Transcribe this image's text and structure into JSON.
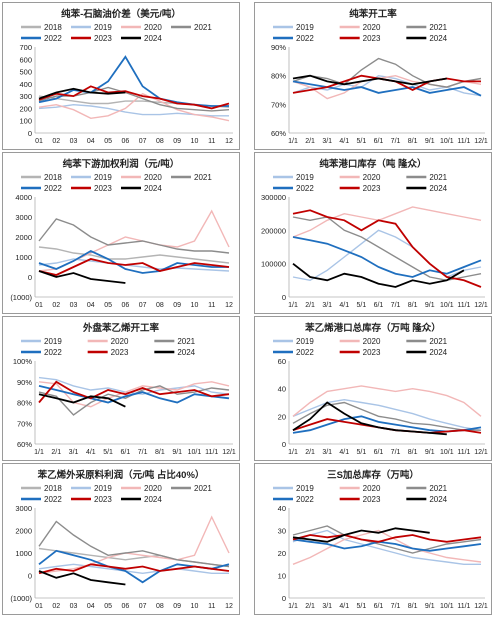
{
  "colors": {
    "2018": "#b4b4b4",
    "2019": "#a9c4e6",
    "2020": "#f2b7b7",
    "2021": "#8c8c8c",
    "2022": "#1f6fbf",
    "2023": "#c00000",
    "2024": "#000000"
  },
  "legend_years_7": [
    "2018",
    "2019",
    "2020",
    "2021",
    "2022",
    "2023",
    "2024"
  ],
  "legend_years_6": [
    "2019",
    "2020",
    "2021",
    "2022",
    "2023",
    "2024"
  ],
  "chart_data": [
    {
      "id": "p1",
      "type": "line",
      "title": "纯苯-石脑油价差（美元/吨）",
      "y_ticks": [
        "700",
        "600",
        "500",
        "400",
        "300",
        "200",
        "100",
        "0"
      ],
      "x_ticks": [
        "01",
        "02",
        "03",
        "04",
        "05",
        "06",
        "07",
        "08",
        "09",
        "10",
        "11",
        "12"
      ],
      "ylim": [
        0,
        700
      ],
      "series": [
        {
          "name": "2018",
          "values": [
            300,
            280,
            260,
            240,
            240,
            260,
            260,
            250,
            240,
            230,
            220,
            210
          ]
        },
        {
          "name": "2019",
          "values": [
            200,
            210,
            230,
            220,
            200,
            170,
            150,
            150,
            160,
            150,
            140,
            140
          ]
        },
        {
          "name": "2020",
          "values": [
            210,
            230,
            190,
            120,
            140,
            200,
            320,
            260,
            190,
            150,
            130,
            100
          ]
        },
        {
          "name": "2021",
          "values": [
            260,
            300,
            300,
            330,
            370,
            330,
            280,
            230,
            200,
            190,
            180,
            190
          ]
        },
        {
          "name": "2022",
          "values": [
            250,
            280,
            350,
            330,
            420,
            620,
            380,
            280,
            250,
            230,
            220,
            220
          ]
        },
        {
          "name": "2023",
          "values": [
            270,
            320,
            300,
            380,
            330,
            340,
            300,
            280,
            240,
            230,
            200,
            240
          ]
        },
        {
          "name": "2024",
          "values": [
            280,
            330,
            360,
            330,
            320,
            330,
            null,
            null,
            null,
            null,
            null,
            null
          ]
        }
      ]
    },
    {
      "id": "p2",
      "type": "line",
      "title": "纯苯下游加权利润（元/吨）",
      "y_ticks": [
        "4000",
        "3000",
        "2000",
        "1000",
        "0",
        "(1000)"
      ],
      "x_ticks": [
        "01",
        "02",
        "03",
        "04",
        "05",
        "06",
        "07",
        "08",
        "09",
        "10",
        "11",
        "12"
      ],
      "ylim": [
        -1000,
        4000
      ],
      "series": [
        {
          "name": "2018",
          "values": [
            1500,
            1400,
            1200,
            1100,
            900,
            900,
            1000,
            1100,
            1000,
            900,
            800,
            700
          ]
        },
        {
          "name": "2019",
          "values": [
            600,
            700,
            900,
            800,
            700,
            600,
            500,
            400,
            450,
            400,
            350,
            300
          ]
        },
        {
          "name": "2020",
          "values": [
            300,
            400,
            800,
            1200,
            1600,
            2000,
            1800,
            1600,
            1500,
            1800,
            3300,
            1500
          ]
        },
        {
          "name": "2021",
          "values": [
            1800,
            2900,
            2600,
            2000,
            1600,
            1700,
            1800,
            1600,
            1400,
            1300,
            1300,
            1200
          ]
        },
        {
          "name": "2022",
          "values": [
            700,
            400,
            800,
            1300,
            900,
            400,
            200,
            300,
            700,
            600,
            500,
            500
          ]
        },
        {
          "name": "2023",
          "values": [
            300,
            100,
            500,
            900,
            700,
            600,
            700,
            300,
            500,
            700,
            600,
            500
          ]
        },
        {
          "name": "2024",
          "values": [
            300,
            0,
            200,
            -100,
            -200,
            -300,
            null,
            null,
            null,
            null,
            null,
            null
          ]
        }
      ]
    },
    {
      "id": "p3",
      "type": "line",
      "title": "外盘苯乙烯开工率",
      "y_ticks": [
        "100%",
        "90%",
        "80%",
        "70%",
        "60%"
      ],
      "x_ticks": [
        "1/1",
        "2/1",
        "3/1",
        "4/1",
        "5/1",
        "6/1",
        "7/1",
        "8/1",
        "9/1",
        "10/1",
        "11/1",
        "12/1"
      ],
      "ylim": [
        60,
        100
      ],
      "series": [
        {
          "name": "2019",
          "values": [
            92,
            91,
            88,
            86,
            87,
            85,
            84,
            86,
            87,
            88,
            85,
            84
          ]
        },
        {
          "name": "2020",
          "values": [
            90,
            89,
            80,
            78,
            82,
            85,
            88,
            87,
            86,
            89,
            90,
            88
          ]
        },
        {
          "name": "2021",
          "values": [
            85,
            83,
            74,
            80,
            84,
            82,
            86,
            88,
            84,
            85,
            87,
            86
          ]
        },
        {
          "name": "2022",
          "values": [
            88,
            86,
            84,
            82,
            80,
            83,
            85,
            82,
            80,
            84,
            83,
            82
          ]
        },
        {
          "name": "2023",
          "values": [
            80,
            90,
            85,
            82,
            86,
            84,
            87,
            84,
            85,
            86,
            83,
            84
          ]
        },
        {
          "name": "2024",
          "values": [
            84,
            82,
            80,
            83,
            82,
            78,
            null,
            null,
            null,
            null,
            null,
            null
          ]
        }
      ]
    },
    {
      "id": "p4",
      "type": "line",
      "title": "苯乙烯外采原料利润（元/吨 占比40%）",
      "y_ticks": [
        "3000",
        "2000",
        "1000",
        "0",
        "(1000)"
      ],
      "x_ticks": [
        "01",
        "02",
        "03",
        "04",
        "05",
        "06",
        "07",
        "08",
        "09",
        "10",
        "11",
        "12"
      ],
      "ylim": [
        -1000,
        3000
      ],
      "series": [
        {
          "name": "2018",
          "values": [
            1200,
            1100,
            1000,
            900,
            800,
            700,
            800,
            900,
            700,
            600,
            500,
            400
          ]
        },
        {
          "name": "2019",
          "values": [
            300,
            400,
            500,
            400,
            300,
            200,
            100,
            200,
            300,
            200,
            100,
            100
          ]
        },
        {
          "name": "2020",
          "values": [
            100,
            200,
            300,
            500,
            800,
            1000,
            900,
            800,
            700,
            900,
            2600,
            1000
          ]
        },
        {
          "name": "2021",
          "values": [
            1300,
            2400,
            1800,
            1300,
            900,
            1000,
            1100,
            900,
            700,
            600,
            500,
            400
          ]
        },
        {
          "name": "2022",
          "values": [
            500,
            1100,
            900,
            700,
            400,
            200,
            -300,
            200,
            500,
            400,
            300,
            500
          ]
        },
        {
          "name": "2023",
          "values": [
            100,
            300,
            200,
            500,
            400,
            300,
            400,
            200,
            300,
            400,
            300,
            200
          ]
        },
        {
          "name": "2024",
          "values": [
            200,
            -100,
            100,
            -200,
            -300,
            -400,
            null,
            null,
            null,
            null,
            null,
            null
          ]
        }
      ]
    },
    {
      "id": "p5",
      "type": "line",
      "title": "纯苯开工率",
      "y_ticks": [
        "90%",
        "80%",
        "70%",
        "60%"
      ],
      "x_ticks": [
        "1/1",
        "2/1",
        "3/1",
        "4/1",
        "5/1",
        "6/1",
        "7/1",
        "8/1",
        "9/1",
        "10/1",
        "11/1",
        "12/1"
      ],
      "ylim": [
        60,
        90
      ],
      "series": [
        {
          "name": "2019",
          "values": [
            74,
            76,
            75,
            77,
            76,
            80,
            79,
            77,
            75,
            76,
            74,
            73
          ]
        },
        {
          "name": "2020",
          "values": [
            78,
            76,
            72,
            74,
            78,
            79,
            80,
            78,
            77,
            76,
            78,
            77
          ]
        },
        {
          "name": "2021",
          "values": [
            78,
            80,
            79,
            77,
            82,
            86,
            84,
            80,
            77,
            76,
            78,
            79
          ]
        },
        {
          "name": "2022",
          "values": [
            78,
            77,
            76,
            75,
            76,
            74,
            75,
            76,
            74,
            75,
            76,
            73
          ]
        },
        {
          "name": "2023",
          "values": [
            74,
            75,
            76,
            78,
            80,
            79,
            78,
            75,
            78,
            79,
            78,
            78
          ]
        },
        {
          "name": "2024",
          "values": [
            79,
            80,
            78,
            77,
            78,
            79,
            78,
            77,
            78,
            79,
            null,
            null
          ]
        }
      ]
    },
    {
      "id": "p6",
      "type": "line",
      "title": "纯苯港口库存（吨 隆众）",
      "y_ticks": [
        "300000",
        "200000",
        "100000",
        "0"
      ],
      "x_ticks": [
        "1/1",
        "2/1",
        "3/1",
        "4/1",
        "5/1",
        "6/1",
        "7/1",
        "8/1",
        "9/1",
        "10/1",
        "11/1",
        "12/1"
      ],
      "ylim": [
        0,
        300000
      ],
      "series": [
        {
          "name": "2019",
          "values": [
            60000,
            50000,
            80000,
            120000,
            160000,
            200000,
            180000,
            150000,
            100000,
            60000,
            80000,
            90000
          ]
        },
        {
          "name": "2020",
          "values": [
            180000,
            200000,
            230000,
            250000,
            240000,
            230000,
            250000,
            270000,
            260000,
            250000,
            240000,
            230000
          ]
        },
        {
          "name": "2021",
          "values": [
            240000,
            230000,
            240000,
            200000,
            180000,
            150000,
            120000,
            90000,
            60000,
            50000,
            60000,
            70000
          ]
        },
        {
          "name": "2022",
          "values": [
            180000,
            170000,
            160000,
            140000,
            120000,
            90000,
            70000,
            60000,
            80000,
            70000,
            90000,
            110000
          ]
        },
        {
          "name": "2023",
          "values": [
            250000,
            260000,
            240000,
            230000,
            200000,
            230000,
            220000,
            150000,
            100000,
            60000,
            50000,
            30000
          ]
        },
        {
          "name": "2024",
          "values": [
            100000,
            60000,
            50000,
            70000,
            60000,
            40000,
            30000,
            50000,
            40000,
            50000,
            80000,
            null
          ]
        }
      ]
    },
    {
      "id": "p7",
      "type": "line",
      "title": "苯乙烯港口总库存（万吨 隆众）",
      "y_ticks": [
        "60",
        "40",
        "20",
        "0"
      ],
      "x_ticks": [
        "1/1",
        "2/1",
        "3/1",
        "4/1",
        "5/1",
        "6/1",
        "7/1",
        "8/1",
        "9/1",
        "10/1",
        "11/1",
        "12/1"
      ],
      "ylim": [
        0,
        60
      ],
      "series": [
        {
          "name": "2019",
          "values": [
            20,
            25,
            30,
            32,
            30,
            28,
            25,
            22,
            18,
            15,
            12,
            10
          ]
        },
        {
          "name": "2020",
          "values": [
            20,
            30,
            38,
            40,
            42,
            40,
            38,
            40,
            38,
            35,
            30,
            20
          ]
        },
        {
          "name": "2021",
          "values": [
            15,
            22,
            28,
            30,
            25,
            20,
            18,
            15,
            14,
            12,
            10,
            10
          ]
        },
        {
          "name": "2022",
          "values": [
            8,
            10,
            14,
            18,
            20,
            16,
            14,
            12,
            10,
            9,
            10,
            12
          ]
        },
        {
          "name": "2023",
          "values": [
            10,
            14,
            18,
            16,
            14,
            12,
            10,
            9,
            8,
            9,
            10,
            8
          ]
        },
        {
          "name": "2024",
          "values": [
            10,
            18,
            30,
            22,
            15,
            12,
            10,
            9,
            8,
            7,
            null,
            null
          ]
        }
      ]
    },
    {
      "id": "p8",
      "type": "line",
      "title": "三S加总库存（万吨）",
      "y_ticks": [
        "40",
        "30",
        "20",
        "10",
        "0"
      ],
      "x_ticks": [
        "1/1",
        "2/1",
        "3/1",
        "4/1",
        "5/1",
        "6/1",
        "7/1",
        "8/1",
        "9/1",
        "10/1",
        "11/1",
        "12/1"
      ],
      "ylim": [
        0,
        40
      ],
      "series": [
        {
          "name": "2019",
          "values": [
            25,
            28,
            30,
            26,
            24,
            22,
            20,
            18,
            17,
            16,
            15,
            15
          ]
        },
        {
          "name": "2020",
          "values": [
            15,
            18,
            22,
            26,
            28,
            30,
            26,
            22,
            20,
            18,
            17,
            16
          ]
        },
        {
          "name": "2021",
          "values": [
            28,
            30,
            32,
            28,
            26,
            24,
            22,
            20,
            22,
            24,
            25,
            26
          ]
        },
        {
          "name": "2022",
          "values": [
            26,
            25,
            24,
            22,
            23,
            25,
            24,
            22,
            21,
            22,
            23,
            24
          ]
        },
        {
          "name": "2023",
          "values": [
            26,
            28,
            27,
            28,
            26,
            25,
            27,
            28,
            26,
            25,
            26,
            27
          ]
        },
        {
          "name": "2024",
          "values": [
            27,
            26,
            25,
            28,
            30,
            29,
            31,
            30,
            29,
            null,
            null,
            null
          ]
        }
      ]
    }
  ]
}
